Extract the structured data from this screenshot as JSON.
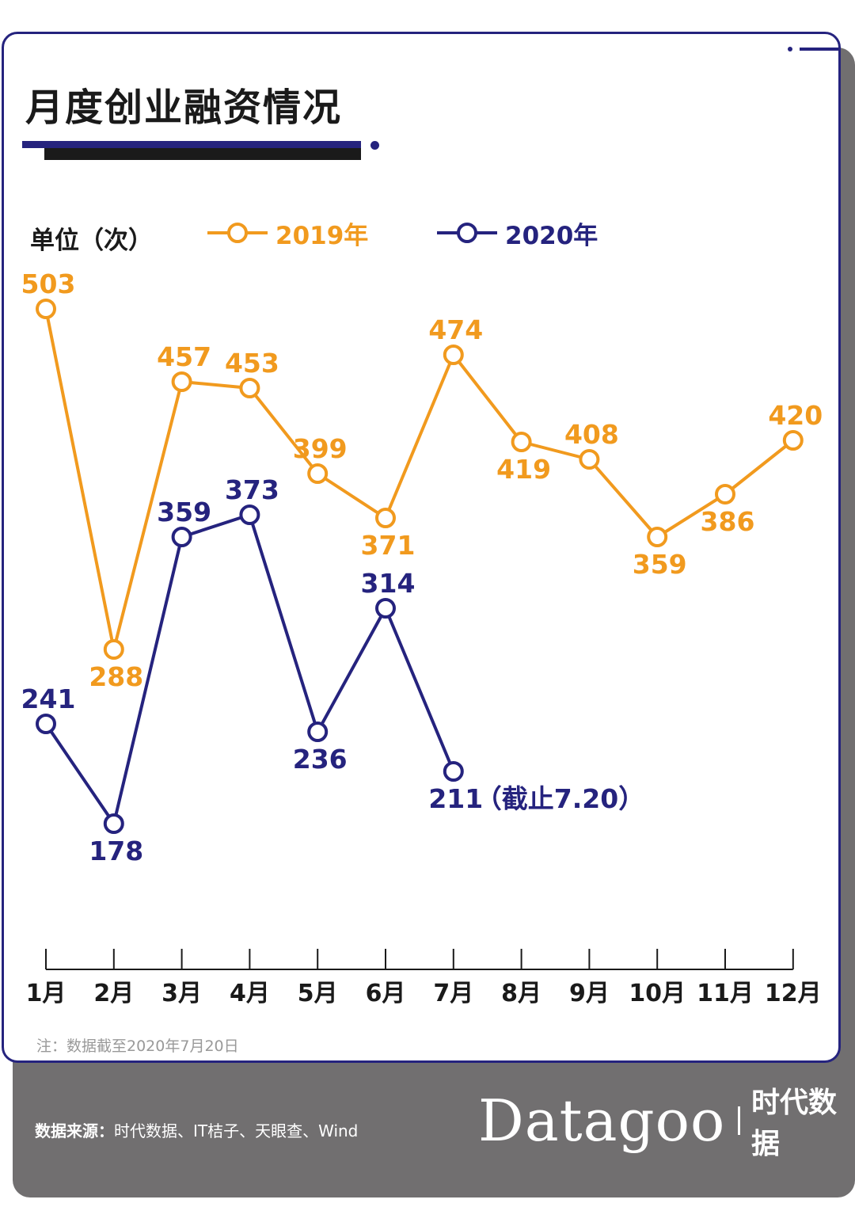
{
  "title": "月度创业融资情况",
  "unit_label": "单位（次）",
  "legend": {
    "series_2019": "2019年",
    "series_2020": "2020年"
  },
  "colors": {
    "series_2019": "#f19a1e",
    "series_2020": "#25237e",
    "frame": "#25237e",
    "footer_bg": "#716f70"
  },
  "chart_data": {
    "type": "line",
    "categories": [
      "1月",
      "2月",
      "3月",
      "4月",
      "5月",
      "6月",
      "7月",
      "8月",
      "9月",
      "10月",
      "11月",
      "12月"
    ],
    "series": [
      {
        "name": "2019年",
        "values": [
          503,
          288,
          457,
          453,
          399,
          371,
          474,
          419,
          408,
          359,
          386,
          420
        ]
      },
      {
        "name": "2020年",
        "values": [
          241,
          178,
          359,
          373,
          236,
          314,
          211,
          null,
          null,
          null,
          null,
          null
        ]
      }
    ],
    "annotations": [
      {
        "series": "2020年",
        "category": "7月",
        "text": "（截止7.20）"
      }
    ],
    "grid": false,
    "legend_position": "top-left"
  },
  "note": "注：数据截至2020年7月20日",
  "footer": {
    "source_label": "数据来源：",
    "source_text": "时代数据、IT桔子、天眼查、Wind",
    "brand_name": "Datagoo",
    "brand_cn": "时代数据"
  }
}
